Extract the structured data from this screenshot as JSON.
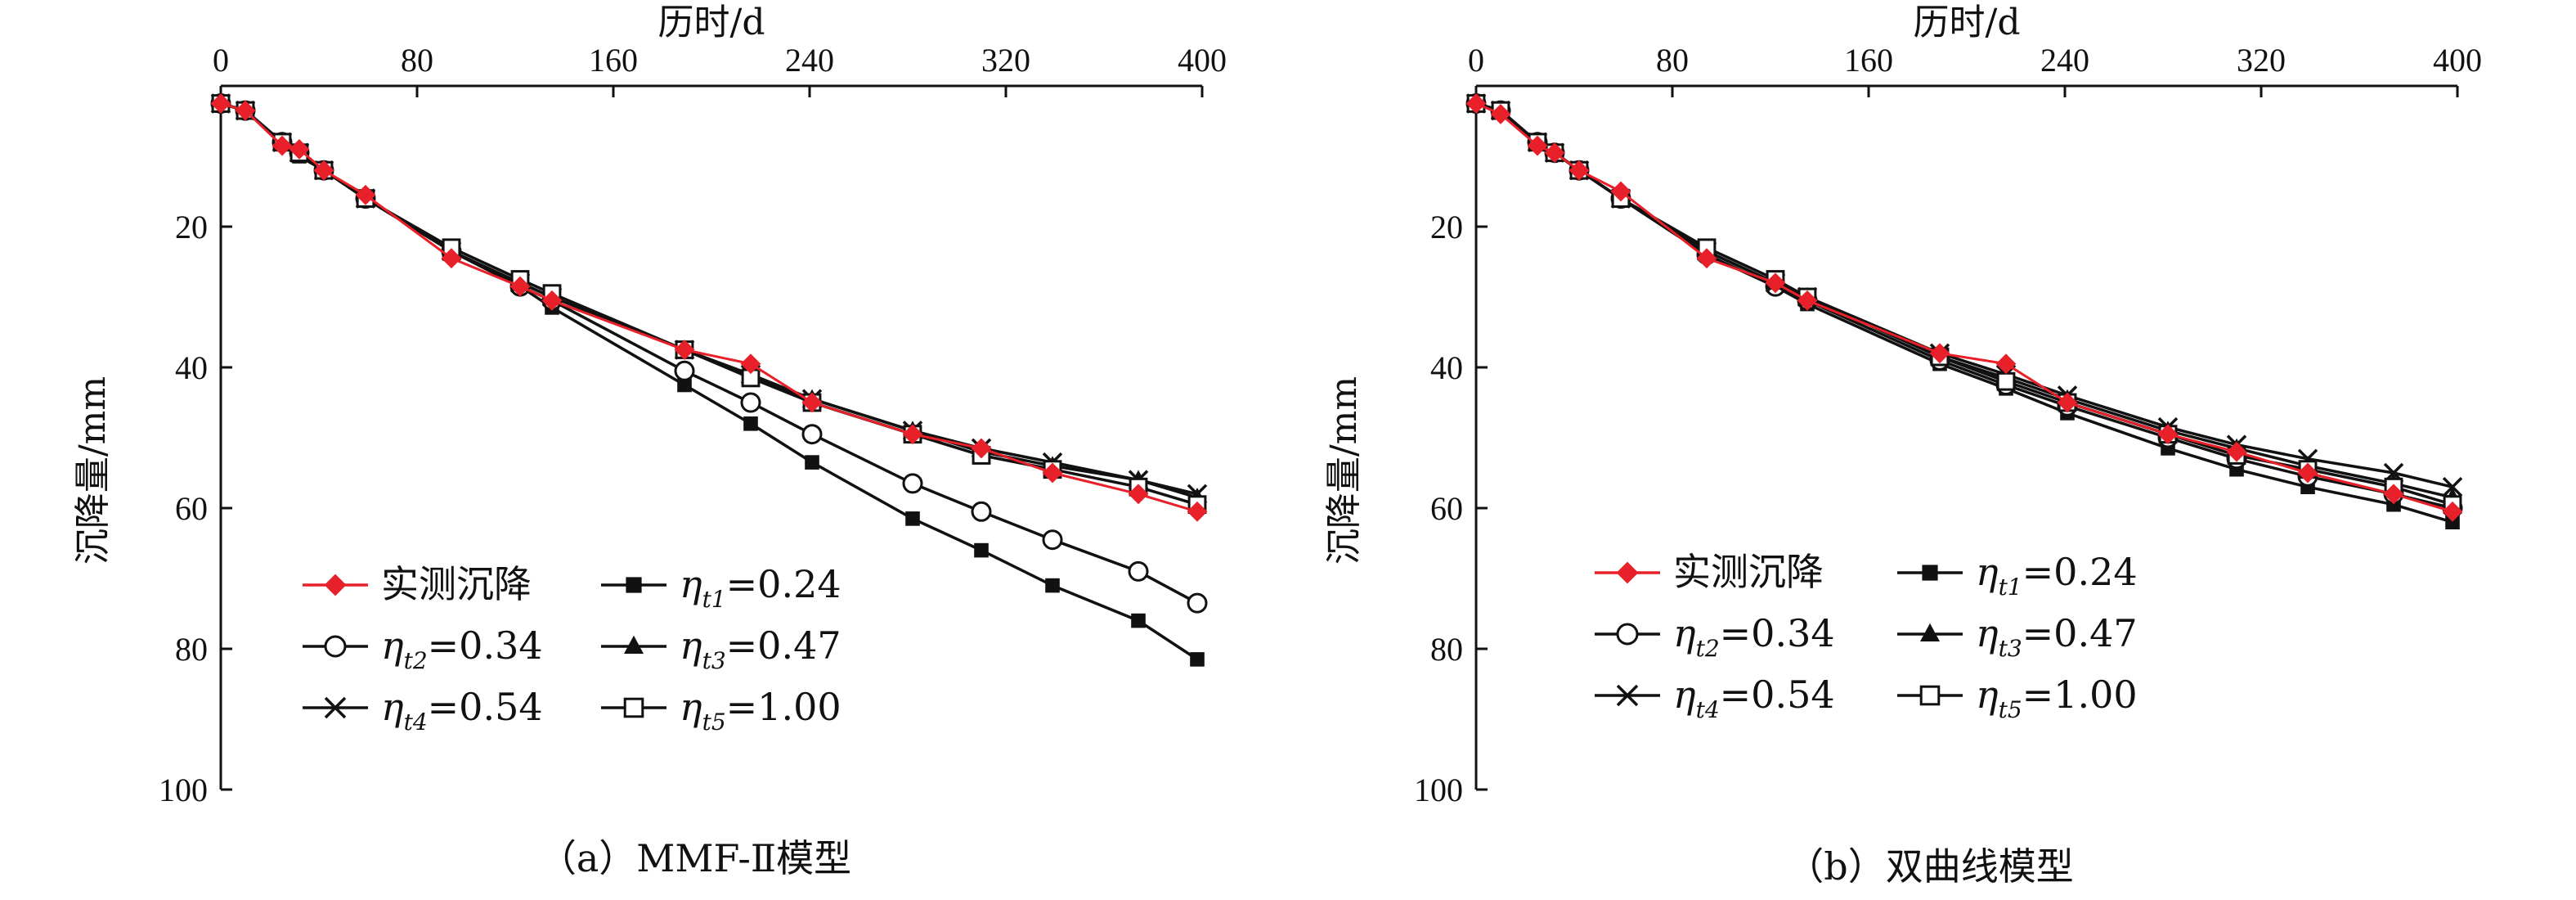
{
  "colors": {
    "observed": "#e8202a",
    "model": "#111111"
  },
  "chart_data": [
    {
      "type": "line",
      "caption": "（a）MMF-Ⅱ模型",
      "xlabel": "历时/d",
      "ylabel": "沉降量/mm",
      "xlim": [
        0,
        400
      ],
      "ylim": [
        0,
        100
      ],
      "y_inverted": true,
      "x_ticks": [
        0,
        80,
        160,
        240,
        320,
        400
      ],
      "y_ticks": [
        20,
        40,
        60,
        80,
        100
      ],
      "legend": "lower-left",
      "series": [
        {
          "name": "实测沉降",
          "marker": "diamond-filled",
          "color": "#e8202a",
          "points": [
            [
              0,
              2.5
            ],
            [
              10,
              3.5
            ],
            [
              25,
              8.5
            ],
            [
              32,
              9
            ],
            [
              42,
              12
            ],
            [
              59,
              15.5
            ],
            [
              94,
              24.5
            ],
            [
              122,
              28.5
            ],
            [
              135,
              30.5
            ],
            [
              189,
              37.5
            ],
            [
              216,
              39.5
            ],
            [
              241,
              45
            ],
            [
              282,
              49.5
            ],
            [
              310,
              51.5
            ],
            [
              339,
              55
            ],
            [
              374,
              58
            ],
            [
              398,
              60.5
            ]
          ]
        },
        {
          "name": "η_t1=0.24",
          "eta_sub": "t1",
          "value_text": "=0.24",
          "marker": "square-filled",
          "color": "#111111",
          "points": [
            [
              0,
              2.5
            ],
            [
              10,
              3.5
            ],
            [
              25,
              8
            ],
            [
              32,
              10
            ],
            [
              42,
              12
            ],
            [
              59,
              16
            ],
            [
              94,
              23.5
            ],
            [
              122,
              28.5
            ],
            [
              135,
              31.5
            ],
            [
              189,
              42.5
            ],
            [
              216,
              48
            ],
            [
              241,
              53.5
            ],
            [
              282,
              61.5
            ],
            [
              310,
              66
            ],
            [
              339,
              71
            ],
            [
              374,
              76
            ],
            [
              398,
              81.5
            ]
          ]
        },
        {
          "name": "η_t2=0.34",
          "eta_sub": "t2",
          "value_text": "=0.34",
          "marker": "circle-open",
          "color": "#111111",
          "points": [
            [
              0,
              2.5
            ],
            [
              10,
              3.5
            ],
            [
              25,
              8
            ],
            [
              32,
              9.5
            ],
            [
              42,
              12
            ],
            [
              59,
              16
            ],
            [
              94,
              23.5
            ],
            [
              122,
              28.5
            ],
            [
              135,
              30.5
            ],
            [
              189,
              40.5
            ],
            [
              216,
              45
            ],
            [
              241,
              49.5
            ],
            [
              282,
              56.5
            ],
            [
              310,
              60.5
            ],
            [
              339,
              64.5
            ],
            [
              374,
              69
            ],
            [
              398,
              73.5
            ]
          ]
        },
        {
          "name": "η_t3=0.47",
          "eta_sub": "t3",
          "value_text": "=0.47",
          "marker": "triangle-filled",
          "color": "#111111",
          "points": [
            [
              0,
              2.5
            ],
            [
              10,
              3.5
            ],
            [
              25,
              8
            ],
            [
              32,
              9.5
            ],
            [
              42,
              12
            ],
            [
              59,
              16
            ],
            [
              94,
              23.5
            ],
            [
              122,
              28
            ],
            [
              135,
              30
            ],
            [
              189,
              37.5
            ],
            [
              216,
              41.5
            ],
            [
              241,
              44.5
            ],
            [
              282,
              49
            ],
            [
              310,
              52
            ],
            [
              339,
              54
            ],
            [
              374,
              56
            ],
            [
              398,
              58.5
            ]
          ]
        },
        {
          "name": "η_t4=0.54",
          "eta_sub": "t4",
          "value_text": "=0.54",
          "marker": "x",
          "color": "#111111",
          "points": [
            [
              0,
              2.5
            ],
            [
              10,
              3.5
            ],
            [
              25,
              8
            ],
            [
              32,
              9.5
            ],
            [
              42,
              12
            ],
            [
              59,
              16
            ],
            [
              94,
              23.5
            ],
            [
              122,
              28
            ],
            [
              135,
              30
            ],
            [
              189,
              37.5
            ],
            [
              216,
              41
            ],
            [
              241,
              44.5
            ],
            [
              282,
              49
            ],
            [
              310,
              51.5
            ],
            [
              339,
              53.5
            ],
            [
              374,
              56
            ],
            [
              398,
              58
            ]
          ]
        },
        {
          "name": "η_t5=1.00",
          "eta_sub": "t5",
          "value_text": "=1.00",
          "marker": "square-open",
          "color": "#111111",
          "points": [
            [
              0,
              2.5
            ],
            [
              10,
              3.5
            ],
            [
              25,
              8
            ],
            [
              32,
              9.5
            ],
            [
              42,
              12
            ],
            [
              59,
              16
            ],
            [
              94,
              23
            ],
            [
              122,
              27.5
            ],
            [
              135,
              29.5
            ],
            [
              189,
              37.5
            ],
            [
              216,
              41.5
            ],
            [
              241,
              45
            ],
            [
              282,
              49.5
            ],
            [
              310,
              52.5
            ],
            [
              339,
              54.5
            ],
            [
              374,
              57
            ],
            [
              398,
              59.5
            ]
          ]
        }
      ]
    },
    {
      "type": "line",
      "caption": "（b）双曲线模型",
      "xlabel": "历时/d",
      "ylabel": "沉降量/mm",
      "xlim": [
        0,
        400
      ],
      "ylim": [
        0,
        100
      ],
      "y_inverted": true,
      "x_ticks": [
        0,
        80,
        160,
        240,
        320,
        400
      ],
      "y_ticks": [
        20,
        40,
        60,
        80,
        100
      ],
      "legend": "lower-left",
      "series": [
        {
          "name": "实测沉降",
          "marker": "diamond-filled",
          "color": "#e8202a",
          "points": [
            [
              0,
              2.5
            ],
            [
              10,
              4
            ],
            [
              25,
              8.5
            ],
            [
              32,
              9.5
            ],
            [
              42,
              12
            ],
            [
              59,
              15
            ],
            [
              94,
              24.5
            ],
            [
              122,
              28
            ],
            [
              135,
              30.5
            ],
            [
              189,
              38
            ],
            [
              216,
              39.5
            ],
            [
              241,
              45
            ],
            [
              282,
              49.5
            ],
            [
              310,
              52
            ],
            [
              339,
              55
            ],
            [
              374,
              58
            ],
            [
              398,
              60.5
            ]
          ]
        },
        {
          "name": "η_t1=0.24",
          "eta_sub": "t1",
          "value_text": "=0.24",
          "marker": "square-filled",
          "color": "#111111",
          "points": [
            [
              0,
              2.5
            ],
            [
              10,
              3.5
            ],
            [
              25,
              8
            ],
            [
              32,
              9.5
            ],
            [
              42,
              12
            ],
            [
              59,
              16
            ],
            [
              94,
              24
            ],
            [
              122,
              28.5
            ],
            [
              135,
              31
            ],
            [
              189,
              39.5
            ],
            [
              216,
              43
            ],
            [
              241,
              46.5
            ],
            [
              282,
              51.5
            ],
            [
              310,
              54.5
            ],
            [
              339,
              57
            ],
            [
              374,
              59.5
            ],
            [
              398,
              62
            ]
          ]
        },
        {
          "name": "η_t2=0.34",
          "eta_sub": "t2",
          "value_text": "=0.34",
          "marker": "circle-open",
          "color": "#111111",
          "points": [
            [
              0,
              2.5
            ],
            [
              10,
              3.5
            ],
            [
              25,
              8
            ],
            [
              32,
              9.5
            ],
            [
              42,
              12
            ],
            [
              59,
              16
            ],
            [
              94,
              24
            ],
            [
              122,
              28.5
            ],
            [
              135,
              30.5
            ],
            [
              189,
              39
            ],
            [
              216,
              42.5
            ],
            [
              241,
              45.5
            ],
            [
              282,
              50
            ],
            [
              310,
              53
            ],
            [
              339,
              55.5
            ],
            [
              374,
              58
            ],
            [
              398,
              60
            ]
          ]
        },
        {
          "name": "η_t3=0.47",
          "eta_sub": "t3",
          "value_text": "=0.47",
          "marker": "triangle-filled",
          "color": "#111111",
          "points": [
            [
              0,
              2.5
            ],
            [
              10,
              3.5
            ],
            [
              25,
              8
            ],
            [
              32,
              9.5
            ],
            [
              42,
              12
            ],
            [
              59,
              16
            ],
            [
              94,
              23.5
            ],
            [
              122,
              28
            ],
            [
              135,
              30
            ],
            [
              189,
              38.5
            ],
            [
              216,
              41.5
            ],
            [
              241,
              44.5
            ],
            [
              282,
              49
            ],
            [
              310,
              51.5
            ],
            [
              339,
              54
            ],
            [
              374,
              56.5
            ],
            [
              398,
              58.5
            ]
          ]
        },
        {
          "name": "η_t4=0.54",
          "eta_sub": "t4",
          "value_text": "=0.54",
          "marker": "x",
          "color": "#111111",
          "points": [
            [
              0,
              2.5
            ],
            [
              10,
              3.5
            ],
            [
              25,
              8
            ],
            [
              32,
              9.5
            ],
            [
              42,
              12
            ],
            [
              59,
              16
            ],
            [
              94,
              23.5
            ],
            [
              122,
              28
            ],
            [
              135,
              30
            ],
            [
              189,
              38
            ],
            [
              216,
              41
            ],
            [
              241,
              44
            ],
            [
              282,
              48.5
            ],
            [
              310,
              51
            ],
            [
              339,
              53
            ],
            [
              374,
              55
            ],
            [
              398,
              57
            ]
          ]
        },
        {
          "name": "η_t5=1.00",
          "eta_sub": "t5",
          "value_text": "=1.00",
          "marker": "square-open",
          "color": "#111111",
          "points": [
            [
              0,
              2.5
            ],
            [
              10,
              3.5
            ],
            [
              25,
              8
            ],
            [
              32,
              9.5
            ],
            [
              42,
              12
            ],
            [
              59,
              16
            ],
            [
              94,
              23
            ],
            [
              122,
              27.5
            ],
            [
              135,
              30
            ],
            [
              189,
              38.5
            ],
            [
              216,
              42
            ],
            [
              241,
              45
            ],
            [
              282,
              49.5
            ],
            [
              310,
              52.5
            ],
            [
              339,
              54.5
            ],
            [
              374,
              57
            ],
            [
              398,
              59.5
            ]
          ]
        }
      ]
    }
  ]
}
